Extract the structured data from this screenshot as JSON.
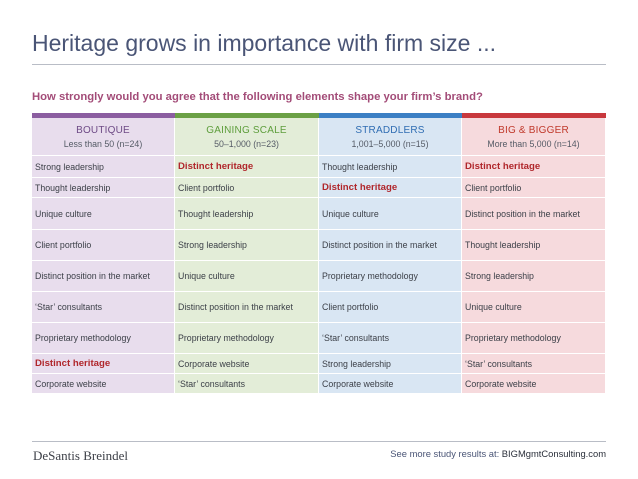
{
  "title": "Heritage grows in importance with firm size ...",
  "question": "How strongly would you agree that the following elements shape your firm’s brand?",
  "colors": {
    "title": "#4a5576",
    "question": "#a34c78",
    "highlight": "#b0262b",
    "boutique_bar": "#8b5da0",
    "boutique_fill": "#e8dded",
    "boutique_text": "#6e4a86",
    "gaining_bar": "#6ba045",
    "gaining_fill": "#e3edd8",
    "gaining_text": "#5e9e3c",
    "straddlers_bar": "#3b7fc4",
    "straddlers_fill": "#d9e6f3",
    "straddlers_text": "#2f6db3",
    "big_bar": "#c8383d",
    "big_fill": "#f6dadd",
    "big_text": "#c0392b"
  },
  "table": {
    "columns": [
      {
        "name": "BOUTIQUE",
        "sub": "Less than 50 (n=24)"
      },
      {
        "name": "GAINING SCALE",
        "sub": "50–1,000 (n=23)"
      },
      {
        "name": "STRADDLERS",
        "sub": "1,001–5,000 (n=15)"
      },
      {
        "name": "BIG & BIGGER",
        "sub": "More than 5,000 (n=14)"
      }
    ],
    "rows": [
      [
        "Strong leadership",
        "Distinct heritage",
        "Thought leadership",
        "Distinct heritage"
      ],
      [
        "Thought leadership",
        "Client portfolio",
        "Distinct heritage",
        "Client portfolio"
      ],
      [
        "Unique culture",
        "Thought leadership",
        "Unique culture",
        "Distinct position in the market"
      ],
      [
        "Client portfolio",
        "Strong leadership",
        "Distinct position in the market",
        "Thought leadership"
      ],
      [
        "Distinct position in the market",
        "Unique culture",
        "Proprietary methodology",
        "Strong leadership"
      ],
      [
        "‘Star’ consultants",
        "Distinct position in the market",
        "Client portfolio",
        "Unique culture"
      ],
      [
        "Proprietary methodology",
        "Proprietary methodology",
        "‘Star’ consultants",
        "Proprietary methodology"
      ],
      [
        "Distinct heritage",
        "Corporate website",
        "Strong leadership",
        "‘Star’ consultants"
      ],
      [
        "Corporate website",
        "‘Star’ consultants",
        "Corporate website",
        "Corporate website"
      ]
    ],
    "highlight_term": "Distinct heritage"
  },
  "footer": {
    "logo": "DeSantis Breindel",
    "prefix": "See more study results at: ",
    "link": "BIGMgmtConsulting.com"
  }
}
